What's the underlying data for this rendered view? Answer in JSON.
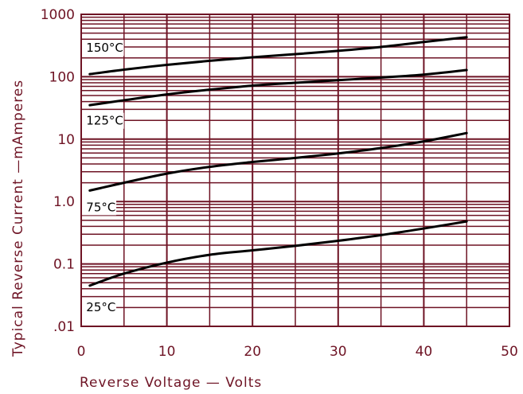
{
  "chart_data": {
    "type": "line",
    "xlabel": "Reverse Voltage — Volts",
    "ylabel": "Typical Reverse Current —mAmperes",
    "xlim": [
      0,
      50
    ],
    "ylim": [
      0.01,
      1000
    ],
    "yscale": "log",
    "grid": true,
    "x_ticks": [
      "0",
      "10",
      "20",
      "30",
      "40",
      "50"
    ],
    "y_ticks": [
      {
        "value": 1000,
        "label": "1000"
      },
      {
        "value": 100,
        "label": "100"
      },
      {
        "value": 10,
        "label": "10"
      },
      {
        "value": 1,
        "label": "1.0"
      },
      {
        "value": 0.1,
        "label": "0.1"
      },
      {
        "value": 0.01,
        "label": ".01"
      }
    ],
    "series": [
      {
        "name": "150°C",
        "label_anchor": [
          0.4,
          250
        ],
        "x": [
          1,
          5,
          10,
          15,
          20,
          25,
          30,
          35,
          40,
          45
        ],
        "values": [
          110,
          130,
          155,
          180,
          205,
          230,
          260,
          300,
          360,
          430
        ]
      },
      {
        "name": "125°C",
        "label_anchor": [
          0.4,
          17
        ],
        "x": [
          1,
          5,
          10,
          15,
          20,
          25,
          30,
          35,
          40,
          45
        ],
        "values": [
          35,
          42,
          52,
          62,
          72,
          80,
          88,
          97,
          108,
          128
        ]
      },
      {
        "name": "75°C",
        "label_anchor": [
          0.4,
          0.7
        ],
        "x": [
          1,
          5,
          10,
          15,
          20,
          25,
          30,
          35,
          40,
          45
        ],
        "values": [
          1.5,
          2.0,
          2.8,
          3.6,
          4.3,
          5.0,
          5.9,
          7.2,
          9.2,
          12.5
        ]
      },
      {
        "name": "25°C",
        "label_anchor": [
          0.4,
          0.0175
        ],
        "x": [
          1,
          5,
          10,
          15,
          20,
          25,
          30,
          35,
          40,
          45
        ],
        "values": [
          0.045,
          0.07,
          0.105,
          0.14,
          0.165,
          0.195,
          0.235,
          0.29,
          0.37,
          0.48
        ]
      }
    ]
  },
  "colors": {
    "grid": "#6e1324",
    "curve": "#000000",
    "background": "#ffffff"
  }
}
